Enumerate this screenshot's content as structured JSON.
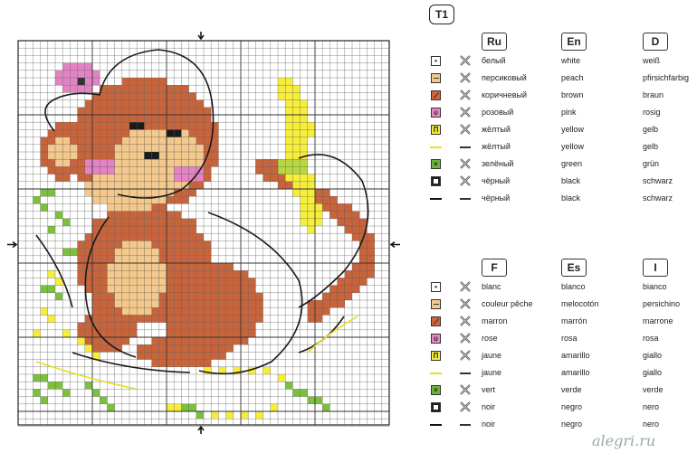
{
  "table_tag": "T1",
  "legend_top": {
    "languages": [
      "Ru",
      "En",
      "D"
    ],
    "rows": [
      {
        "symbol": "dot",
        "color": "#ffffff",
        "texts": [
          "белый",
          "white",
          "weiß"
        ]
      },
      {
        "symbol": "dash",
        "color": "#f5c88a",
        "texts": [
          "персиковый",
          "peach",
          "pfirsichfarbig"
        ]
      },
      {
        "symbol": "slash",
        "color": "#d2643c",
        "texts": [
          "коричневый",
          "brown",
          "braun"
        ]
      },
      {
        "symbol": "u",
        "color": "#e888c8",
        "texts": [
          "розовый",
          "pink",
          "rosig"
        ]
      },
      {
        "symbol": "n",
        "color": "#f7ee3a",
        "texts": [
          "жёлтый",
          "yellow",
          "gelb"
        ]
      },
      {
        "symbol": "line-yellow",
        "color": "#e8e030",
        "texts": [
          "жёлтый",
          "yellow",
          "gelb"
        ]
      },
      {
        "symbol": "x",
        "color": "#6cb436",
        "texts": [
          "зелёный",
          "green",
          "grün"
        ]
      },
      {
        "symbol": "square",
        "color": "#222222",
        "texts": [
          "чёрный",
          "black",
          "schwarz"
        ]
      },
      {
        "symbol": "line-black",
        "color": "#111111",
        "texts": [
          "чёрный",
          "black",
          "schwarz"
        ]
      }
    ]
  },
  "legend_bottom": {
    "languages": [
      "F",
      "Es",
      "I"
    ],
    "rows": [
      {
        "symbol": "dot",
        "color": "#ffffff",
        "texts": [
          "blanc",
          "blanco",
          "bianco"
        ]
      },
      {
        "symbol": "dash",
        "color": "#f5c88a",
        "texts": [
          "couleur pêche",
          "melocotón",
          "persichino"
        ]
      },
      {
        "symbol": "slash",
        "color": "#d2643c",
        "texts": [
          "marron",
          "marrón",
          "marrone"
        ]
      },
      {
        "symbol": "u",
        "color": "#e888c8",
        "texts": [
          "rose",
          "rosa",
          "rosa"
        ]
      },
      {
        "symbol": "n",
        "color": "#f7ee3a",
        "texts": [
          "jaune",
          "amarillo",
          "giallo"
        ]
      },
      {
        "symbol": "line-yellow",
        "color": "#e8e030",
        "texts": [
          "jaune",
          "amarillo",
          "giallo"
        ]
      },
      {
        "symbol": "x",
        "color": "#6cb436",
        "texts": [
          "vert",
          "verde",
          "verde"
        ]
      },
      {
        "symbol": "square",
        "color": "#222222",
        "texts": [
          "noir",
          "negro",
          "nero"
        ]
      },
      {
        "symbol": "line-black",
        "color": "#111111",
        "texts": [
          "noir",
          "negro",
          "nero"
        ]
      }
    ]
  },
  "watermark": "alegri.ru"
}
